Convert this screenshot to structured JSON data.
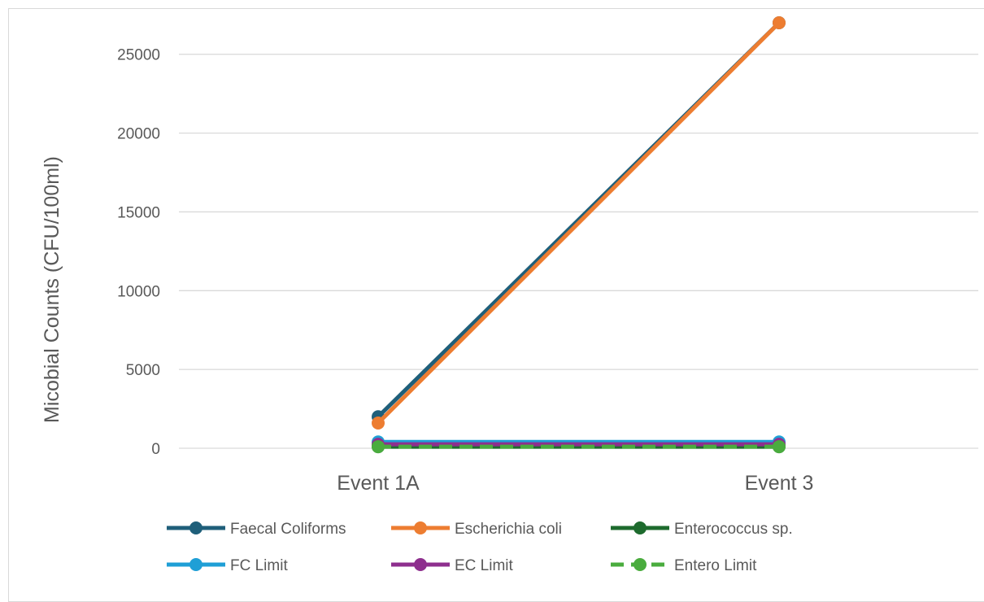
{
  "chart_data": {
    "type": "line",
    "categories": [
      "Event 1A",
      "Event 3"
    ],
    "ylabel": "Micobial Counts (CFU/100ml)",
    "xlabel": "",
    "ylim": [
      0,
      27000
    ],
    "yticks": [
      0,
      5000,
      10000,
      15000,
      20000,
      25000
    ],
    "grid": true,
    "legend_position": "bottom",
    "series": [
      {
        "name": "Faecal Coliforms",
        "values": [
          2000,
          27000
        ],
        "color": "#1f5f7a",
        "dashed": false
      },
      {
        "name": "Escherichia coli",
        "values": [
          1600,
          27000
        ],
        "color": "#ed7d31",
        "dashed": false
      },
      {
        "name": "Enterococcus sp.",
        "values": [
          100,
          100
        ],
        "color": "#1e6b2e",
        "dashed": false
      },
      {
        "name": "FC Limit",
        "values": [
          400,
          400
        ],
        "color": "#1f9fd6",
        "dashed": false
      },
      {
        "name": "EC Limit",
        "values": [
          250,
          250
        ],
        "color": "#8e2f8e",
        "dashed": false
      },
      {
        "name": "Entero Limit",
        "values": [
          100,
          100
        ],
        "color": "#4aac3e",
        "dashed": true
      }
    ]
  }
}
